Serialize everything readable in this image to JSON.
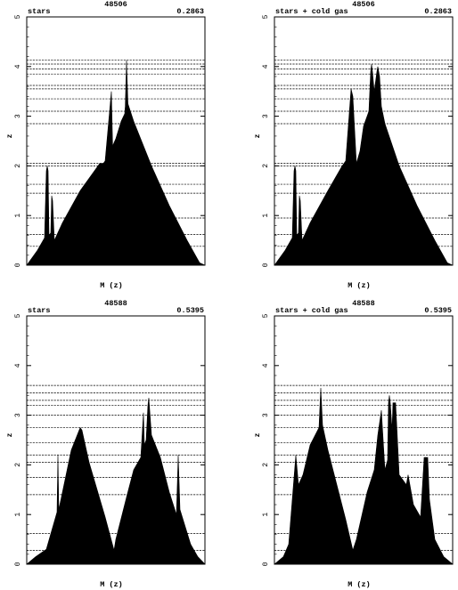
{
  "chart_data": [
    {
      "type": "area",
      "title": "48506",
      "label_left": "stars",
      "label_right": "0.2863",
      "xlabel": "M (z)",
      "ylabel": "z",
      "ylim": [
        0,
        5
      ],
      "yticks": [
        "0",
        "1",
        "2",
        "3",
        "4",
        "5"
      ],
      "level_lines": [
        0.38,
        0.62,
        0.95,
        1.45,
        1.63,
        2.0,
        2.05,
        2.85,
        3.1,
        3.35,
        3.55,
        3.62,
        3.85,
        3.95,
        4.05,
        4.13
      ],
      "profile": [
        [
          0.0,
          0.0
        ],
        [
          0.06,
          0.3
        ],
        [
          0.1,
          0.55
        ],
        [
          0.11,
          1.9
        ],
        [
          0.115,
          2.0
        ],
        [
          0.12,
          1.9
        ],
        [
          0.125,
          0.6
        ],
        [
          0.135,
          0.65
        ],
        [
          0.14,
          1.4
        ],
        [
          0.145,
          1.3
        ],
        [
          0.155,
          0.5
        ],
        [
          0.2,
          0.85
        ],
        [
          0.3,
          1.5
        ],
        [
          0.4,
          2.0
        ],
        [
          0.41,
          2.05
        ],
        [
          0.42,
          2.05
        ],
        [
          0.43,
          2.05
        ],
        [
          0.44,
          2.1
        ],
        [
          0.475,
          3.5
        ],
        [
          0.482,
          2.4
        ],
        [
          0.5,
          2.55
        ],
        [
          0.53,
          2.9
        ],
        [
          0.55,
          3.05
        ],
        [
          0.553,
          3.2
        ],
        [
          0.56,
          4.13
        ],
        [
          0.568,
          3.25
        ],
        [
          0.6,
          2.9
        ],
        [
          0.7,
          2.0
        ],
        [
          0.8,
          1.2
        ],
        [
          0.9,
          0.5
        ],
        [
          0.97,
          0.05
        ],
        [
          1.0,
          0.0
        ]
      ]
    },
    {
      "type": "area",
      "title": "48506",
      "label_left": "stars + cold gas",
      "label_right": "0.2863",
      "xlabel": "M (z)",
      "ylabel": "z",
      "ylim": [
        0,
        5
      ],
      "yticks": [
        "0",
        "1",
        "2",
        "3",
        "4",
        "5"
      ],
      "level_lines": [
        0.38,
        0.62,
        0.95,
        1.45,
        1.63,
        2.0,
        2.05,
        2.85,
        3.1,
        3.35,
        3.55,
        3.62,
        3.85,
        3.95,
        4.05,
        4.13
      ],
      "profile": [
        [
          0.0,
          0.0
        ],
        [
          0.06,
          0.3
        ],
        [
          0.1,
          0.55
        ],
        [
          0.11,
          1.9
        ],
        [
          0.115,
          2.0
        ],
        [
          0.12,
          1.9
        ],
        [
          0.125,
          0.6
        ],
        [
          0.135,
          0.65
        ],
        [
          0.14,
          1.4
        ],
        [
          0.145,
          1.3
        ],
        [
          0.155,
          0.5
        ],
        [
          0.2,
          0.85
        ],
        [
          0.3,
          1.5
        ],
        [
          0.38,
          2.0
        ],
        [
          0.4,
          2.1
        ],
        [
          0.43,
          3.55
        ],
        [
          0.44,
          3.4
        ],
        [
          0.46,
          2.05
        ],
        [
          0.48,
          2.3
        ],
        [
          0.5,
          2.8
        ],
        [
          0.53,
          3.1
        ],
        [
          0.54,
          3.9
        ],
        [
          0.545,
          4.05
        ],
        [
          0.55,
          3.9
        ],
        [
          0.56,
          3.5
        ],
        [
          0.575,
          3.9
        ],
        [
          0.58,
          4.0
        ],
        [
          0.59,
          3.8
        ],
        [
          0.6,
          3.2
        ],
        [
          0.62,
          2.85
        ],
        [
          0.7,
          2.0
        ],
        [
          0.8,
          1.2
        ],
        [
          0.9,
          0.5
        ],
        [
          0.97,
          0.05
        ],
        [
          1.0,
          0.0
        ]
      ]
    },
    {
      "type": "area",
      "title": "48588",
      "label_left": "stars",
      "label_right": "0.5395",
      "xlabel": "M (z)",
      "ylabel": "z",
      "ylim": [
        0,
        5
      ],
      "yticks": [
        "0",
        "1",
        "2",
        "3",
        "4",
        "5"
      ],
      "level_lines": [
        0.28,
        0.62,
        1.4,
        1.75,
        2.05,
        2.2,
        2.45,
        2.75,
        3.0,
        3.2,
        3.3,
        3.45,
        3.6
      ],
      "profile": [
        [
          0.0,
          0.0
        ],
        [
          0.05,
          0.15
        ],
        [
          0.11,
          0.3
        ],
        [
          0.17,
          1.05
        ],
        [
          0.175,
          2.2
        ],
        [
          0.18,
          1.1
        ],
        [
          0.25,
          2.3
        ],
        [
          0.3,
          2.75
        ],
        [
          0.31,
          2.7
        ],
        [
          0.35,
          2.05
        ],
        [
          0.44,
          0.95
        ],
        [
          0.49,
          0.28
        ],
        [
          0.5,
          0.5
        ],
        [
          0.56,
          1.35
        ],
        [
          0.6,
          1.9
        ],
        [
          0.64,
          2.15
        ],
        [
          0.655,
          3.05
        ],
        [
          0.66,
          2.4
        ],
        [
          0.67,
          2.5
        ],
        [
          0.68,
          3.2
        ],
        [
          0.685,
          3.35
        ],
        [
          0.69,
          3.1
        ],
        [
          0.7,
          2.6
        ],
        [
          0.75,
          2.15
        ],
        [
          0.8,
          1.45
        ],
        [
          0.84,
          1.0
        ],
        [
          0.85,
          2.2
        ],
        [
          0.86,
          1.1
        ],
        [
          0.92,
          0.4
        ],
        [
          0.96,
          0.15
        ],
        [
          1.0,
          0.0
        ]
      ]
    },
    {
      "type": "area",
      "title": "48588",
      "label_left": "stars + cold gas",
      "label_right": "0.5395",
      "xlabel": "M (z)",
      "ylabel": "z",
      "ylim": [
        0,
        5
      ],
      "yticks": [
        "0",
        "1",
        "2",
        "3",
        "4",
        "5"
      ],
      "level_lines": [
        0.28,
        0.62,
        1.4,
        1.75,
        2.05,
        2.2,
        2.45,
        2.75,
        3.0,
        3.2,
        3.3,
        3.45,
        3.6
      ],
      "profile": [
        [
          0.0,
          0.0
        ],
        [
          0.05,
          0.15
        ],
        [
          0.08,
          0.4
        ],
        [
          0.1,
          1.3
        ],
        [
          0.12,
          2.2
        ],
        [
          0.135,
          1.6
        ],
        [
          0.16,
          1.8
        ],
        [
          0.2,
          2.4
        ],
        [
          0.25,
          2.75
        ],
        [
          0.26,
          3.55
        ],
        [
          0.27,
          2.8
        ],
        [
          0.3,
          2.3
        ],
        [
          0.35,
          1.6
        ],
        [
          0.4,
          0.9
        ],
        [
          0.44,
          0.28
        ],
        [
          0.46,
          0.5
        ],
        [
          0.52,
          1.45
        ],
        [
          0.56,
          1.9
        ],
        [
          0.58,
          2.6
        ],
        [
          0.6,
          3.1
        ],
        [
          0.62,
          1.9
        ],
        [
          0.635,
          2.1
        ],
        [
          0.64,
          3.25
        ],
        [
          0.645,
          3.4
        ],
        [
          0.65,
          3.25
        ],
        [
          0.66,
          2.7
        ],
        [
          0.665,
          3.25
        ],
        [
          0.68,
          3.25
        ],
        [
          0.7,
          1.8
        ],
        [
          0.74,
          1.6
        ],
        [
          0.75,
          1.8
        ],
        [
          0.78,
          1.2
        ],
        [
          0.82,
          0.95
        ],
        [
          0.84,
          2.15
        ],
        [
          0.86,
          2.15
        ],
        [
          0.87,
          1.3
        ],
        [
          0.9,
          0.5
        ],
        [
          0.95,
          0.15
        ],
        [
          1.0,
          0.0
        ]
      ]
    }
  ]
}
